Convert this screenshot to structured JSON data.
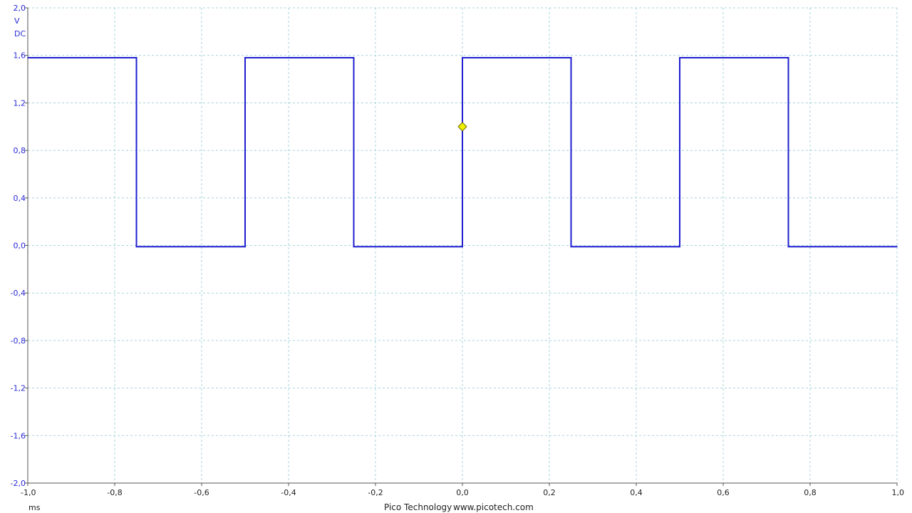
{
  "chart_data": {
    "type": "line",
    "y_unit": "V",
    "y_coupling": "DC",
    "x_unit": "ms",
    "xlim": [
      -1.0,
      1.0
    ],
    "ylim": [
      -2.0,
      2.0
    ],
    "x_ticks": [
      "-1,0",
      "-0,8",
      "-0,6",
      "-0,4",
      "-0,2",
      "0,0",
      "0,2",
      "0,4",
      "0,6",
      "0,8",
      "1,0"
    ],
    "y_ticks": [
      "2,0",
      "1,6",
      "1,2",
      "0,8",
      "0,4",
      "0,0",
      "-0,4",
      "-0,8",
      "-1,2",
      "-1,6",
      "-2,0"
    ],
    "x_tick_values": [
      -1.0,
      -0.8,
      -0.6,
      -0.4,
      -0.2,
      0.0,
      0.2,
      0.4,
      0.6,
      0.8,
      1.0
    ],
    "y_tick_values": [
      2.0,
      1.6,
      1.2,
      0.8,
      0.4,
      0.0,
      -0.4,
      -0.8,
      -1.2,
      -1.6,
      -2.0
    ],
    "grid": true,
    "series": [
      {
        "color": "#1f1fd1",
        "x": [
          -1.0,
          -0.75,
          -0.75,
          -0.5,
          -0.5,
          -0.25,
          -0.25,
          0.0,
          0.0,
          0.25,
          0.25,
          0.5,
          0.5,
          0.75,
          0.75,
          1.0
        ],
        "y": [
          1.58,
          1.58,
          -0.01,
          -0.01,
          1.58,
          1.58,
          -0.01,
          -0.01,
          1.58,
          1.58,
          -0.01,
          -0.01,
          1.58,
          1.58,
          -0.01,
          -0.01
        ]
      }
    ],
    "trigger": {
      "x": 0.0,
      "y": 1.0,
      "color": "#f0f000"
    }
  },
  "footer": {
    "brand": "Pico Technology",
    "url": "www.picotech.com"
  }
}
